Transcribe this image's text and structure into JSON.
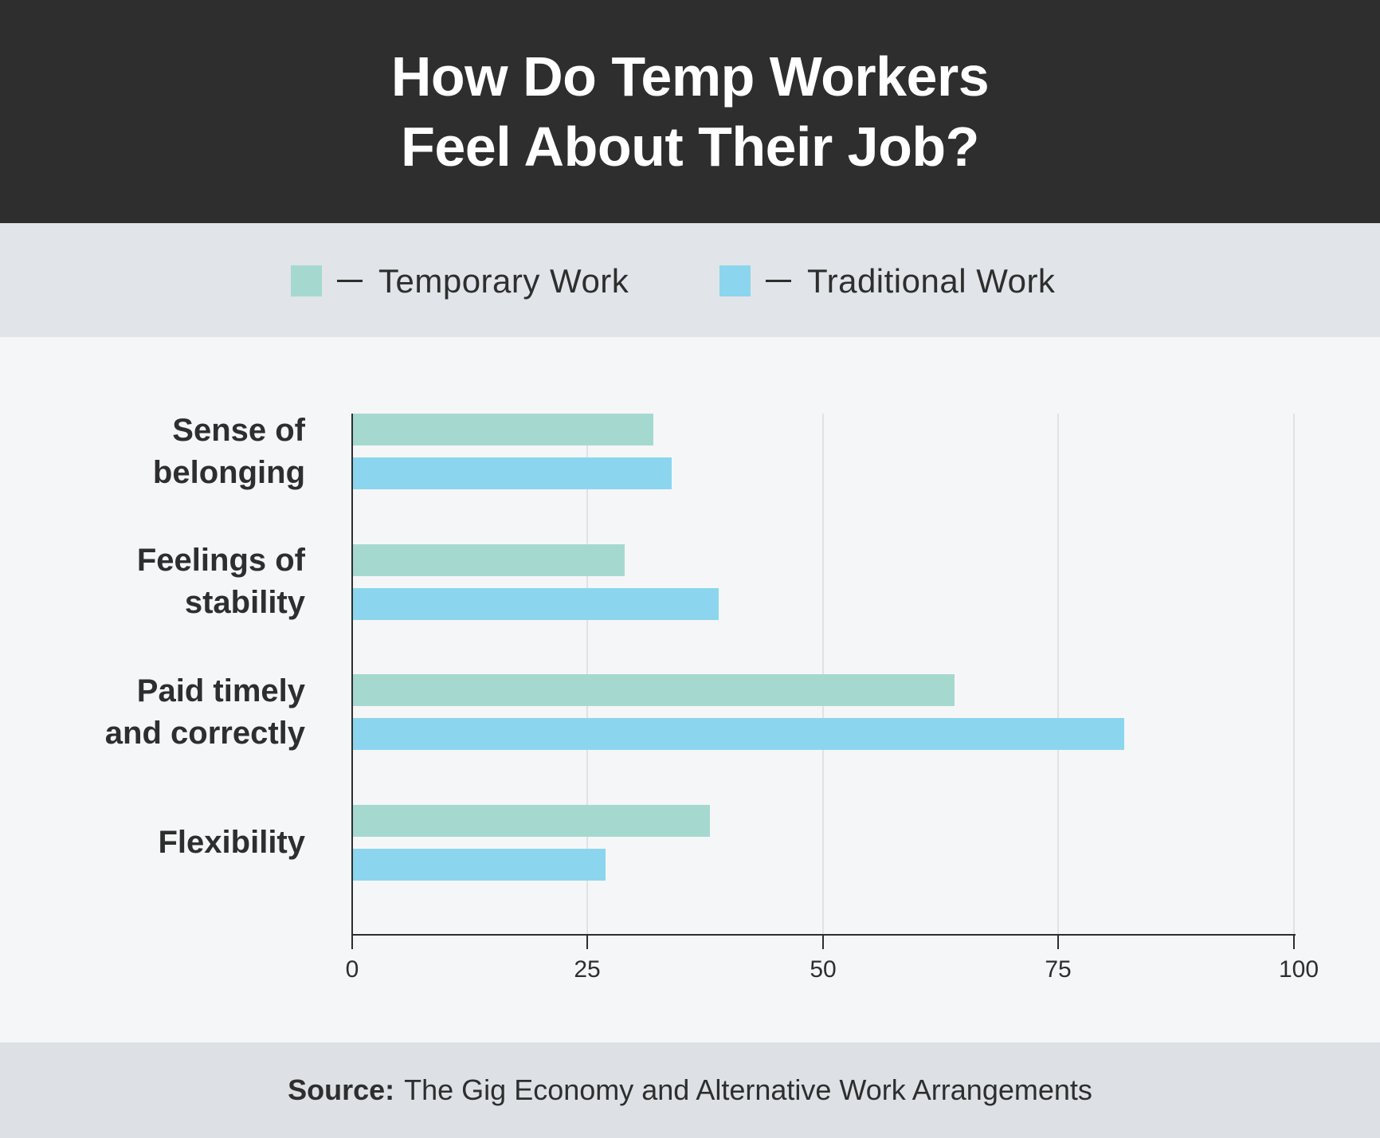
{
  "header": {
    "title_line1": "How Do Temp Workers",
    "title_line2": "Feel About Their Job?"
  },
  "legend": {
    "items": [
      {
        "label": "Temporary Work",
        "color": "#a5d9d0"
      },
      {
        "label": "Traditional Work",
        "color": "#8bd6ee"
      }
    ]
  },
  "axis": {
    "ticks": [
      "0",
      "25",
      "50",
      "75",
      "100"
    ]
  },
  "categories": [
    {
      "label_line1": "Sense of",
      "label_line2": "belonging"
    },
    {
      "label_line1": "Feelings of",
      "label_line2": "stability"
    },
    {
      "label_line1": "Paid timely",
      "label_line2": "and correctly"
    },
    {
      "label_line1": "Flexibility",
      "label_line2": ""
    }
  ],
  "footer": {
    "source_key": "Source:",
    "source_text": "The Gig Economy and Alternative Work Arrangements"
  },
  "chart_data": {
    "type": "bar",
    "orientation": "horizontal",
    "title": "How Do Temp Workers Feel About Their Job?",
    "categories": [
      "Sense of belonging",
      "Feelings of stability",
      "Paid timely and correctly",
      "Flexibility"
    ],
    "series": [
      {
        "name": "Temporary Work",
        "color": "#a5d9d0",
        "values": [
          32,
          29,
          64,
          38
        ]
      },
      {
        "name": "Traditional Work",
        "color": "#8bd6ee",
        "values": [
          34,
          39,
          82,
          27
        ]
      }
    ],
    "xlabel": "",
    "ylabel": "",
    "xlim": [
      0,
      100
    ],
    "xticks": [
      0,
      25,
      50,
      75,
      100
    ],
    "grid": "vertical",
    "legend_position": "top",
    "source": "The Gig Economy and Alternative Work Arrangements"
  }
}
